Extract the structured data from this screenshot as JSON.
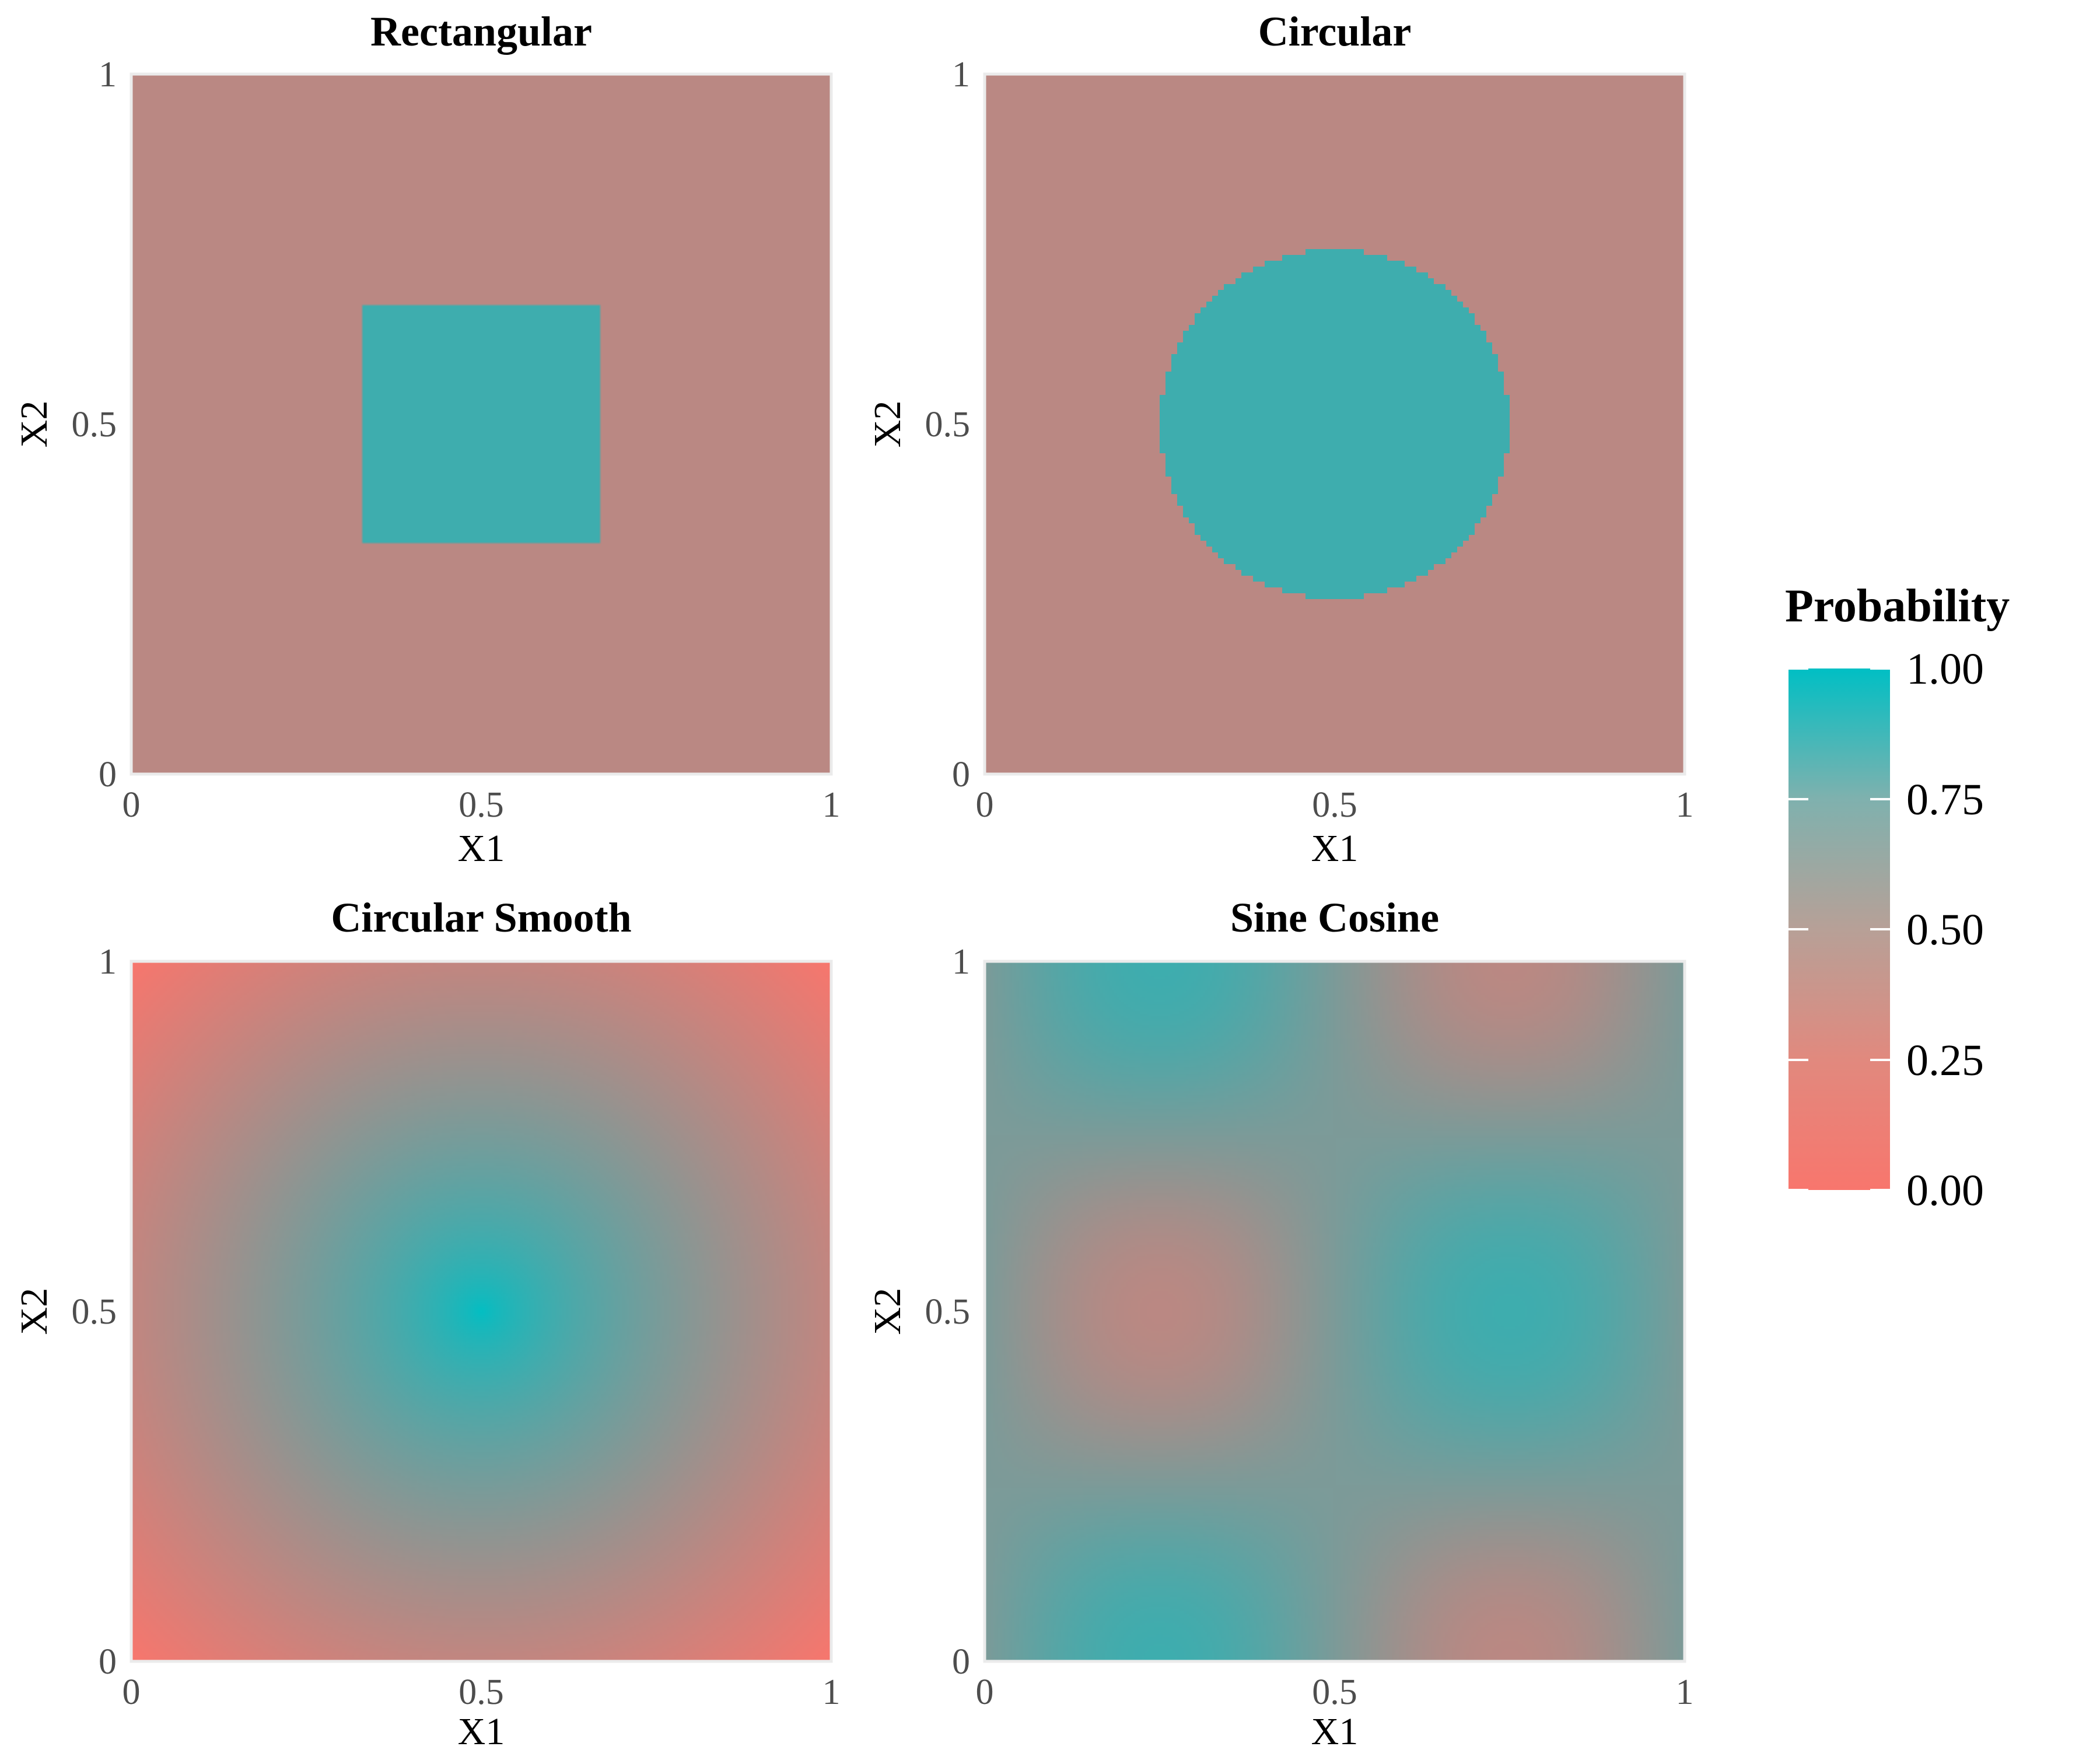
{
  "chart_data": [
    {
      "type": "heatmap",
      "title": "Rectangular",
      "xlabel": "X1",
      "ylabel": "X2",
      "xlim": [
        0,
        1
      ],
      "ylim": [
        0,
        1
      ],
      "xticks": [
        "0",
        "0.5",
        "1"
      ],
      "yticks": [
        "0",
        "0.5",
        "1"
      ],
      "pattern": "rectangle",
      "region": {
        "x": [
          0.33,
          0.67
        ],
        "y": [
          0.33,
          0.67
        ]
      },
      "inside_value": 0.75,
      "outside_value": 0.25
    },
    {
      "type": "heatmap",
      "title": "Circular",
      "xlabel": "X1",
      "ylabel": "X2",
      "xlim": [
        0,
        1
      ],
      "ylim": [
        0,
        1
      ],
      "xticks": [
        "0",
        "0.5",
        "1"
      ],
      "yticks": [
        "0",
        "0.5",
        "1"
      ],
      "pattern": "circle",
      "center": [
        0.5,
        0.5
      ],
      "radius": 0.25,
      "inside_value": 0.75,
      "outside_value": 0.25
    },
    {
      "type": "heatmap",
      "title": "Circular Smooth",
      "xlabel": "X1",
      "ylabel": "X2",
      "xlim": [
        0,
        1
      ],
      "ylim": [
        0,
        1
      ],
      "xticks": [
        "0",
        "0.5",
        "1"
      ],
      "yticks": [
        "0",
        "0.5",
        "1"
      ],
      "pattern": "radial",
      "center": [
        0.5,
        0.5
      ],
      "center_value": 1.0,
      "corner_value": 0.0
    },
    {
      "type": "heatmap",
      "title": "Sine Cosine",
      "xlabel": "X1",
      "ylabel": "X2",
      "xlim": [
        0,
        1
      ],
      "ylim": [
        0,
        1
      ],
      "xticks": [
        "0",
        "0.5",
        "1"
      ],
      "yticks": [
        "0",
        "0.5",
        "1"
      ],
      "pattern": "sine-cosine",
      "high_points": [
        [
          0.25,
          0.0
        ],
        [
          0.25,
          1.0
        ],
        [
          0.75,
          0.5
        ]
      ],
      "low_points": [
        [
          0.75,
          0.0
        ],
        [
          0.75,
          1.0
        ],
        [
          0.25,
          0.5
        ]
      ],
      "max_value": 0.75,
      "min_value": 0.25
    }
  ],
  "legend": {
    "title": "Probability",
    "ticks": [
      "1.00",
      "0.75",
      "0.50",
      "0.25",
      "0.00"
    ],
    "range": [
      0,
      1
    ],
    "placement": "right"
  },
  "colors": {
    "low": "#f8766d",
    "high": "#00bfc4",
    "mid": "#aaaaaa",
    "panel_border": "#ebebeb"
  }
}
